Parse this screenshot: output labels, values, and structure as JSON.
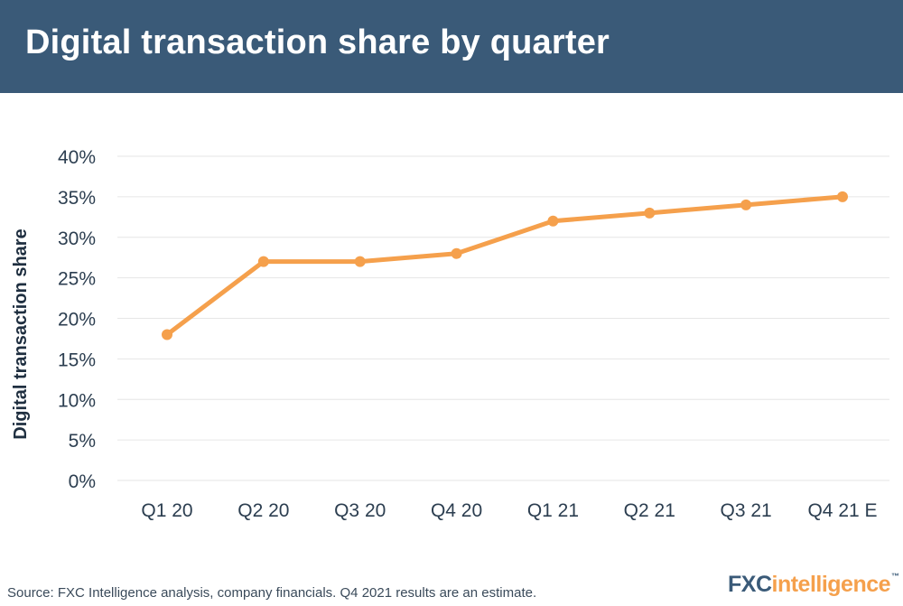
{
  "header": {
    "title": "Digital transaction share by quarter"
  },
  "chart_data": {
    "type": "line",
    "title": "Digital transaction share by quarter",
    "xlabel": "",
    "ylabel": "Digital transaction share",
    "categories": [
      "Q1 20",
      "Q2 20",
      "Q3 20",
      "Q4 20",
      "Q1 21",
      "Q2 21",
      "Q3 21",
      "Q4 21 E"
    ],
    "series": [
      {
        "name": "Digital transaction share",
        "values": [
          18,
          27,
          27,
          28,
          32,
          33,
          34,
          35
        ]
      }
    ],
    "ylim": [
      0,
      40
    ],
    "yticks": [
      0,
      5,
      10,
      15,
      20,
      25,
      30,
      35,
      40
    ],
    "ytick_labels": [
      "0%",
      "5%",
      "10%",
      "15%",
      "20%",
      "25%",
      "30%",
      "35%",
      "40%"
    ],
    "grid": true,
    "colors": {
      "line": "#f5a04c",
      "grid": "#e6e6e6"
    }
  },
  "footer": {
    "source": "Source: FXC Intelligence analysis, company financials. Q4 2021 results are an estimate.",
    "logo_part1": "FXC",
    "logo_part2": "intelligence",
    "logo_tm": "™"
  }
}
